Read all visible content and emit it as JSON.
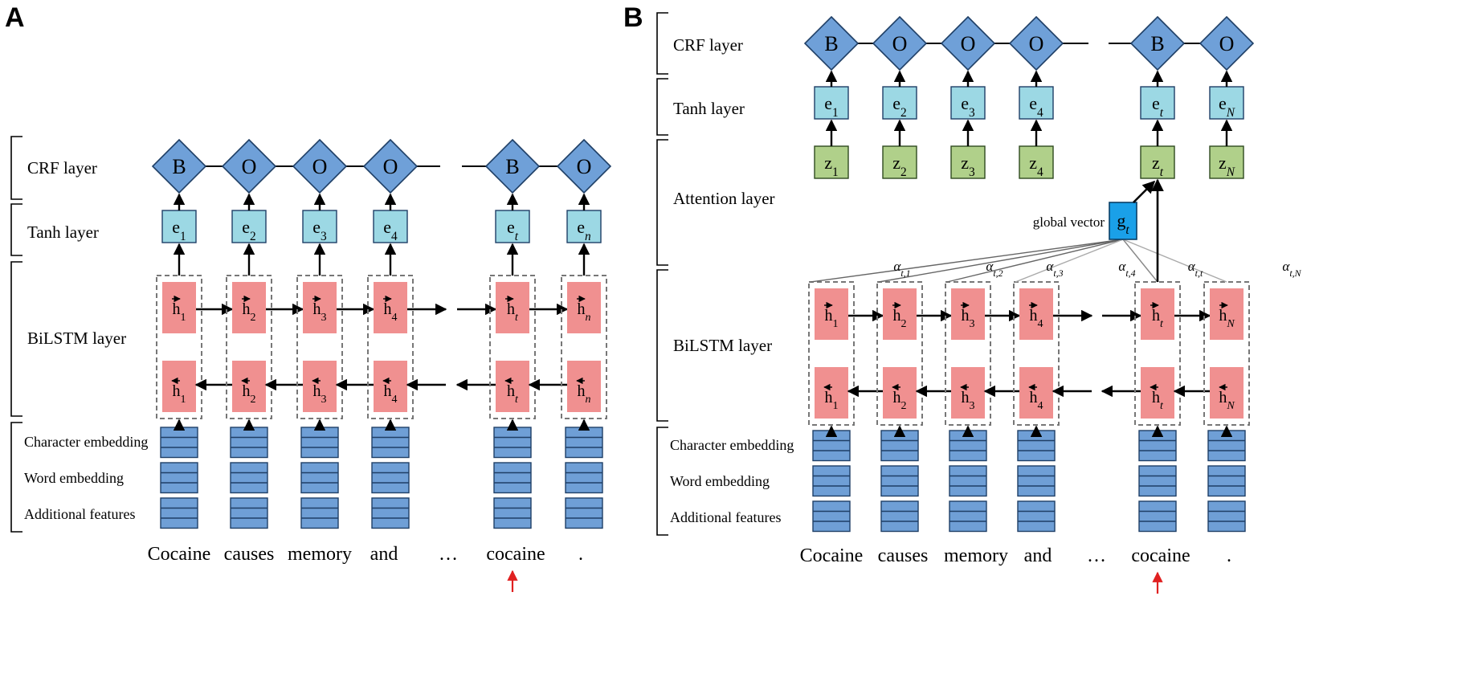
{
  "panels": [
    {
      "letter": "A",
      "layers": {
        "crf": "CRF layer",
        "tanh": "Tanh layer",
        "bilstm": "BiLSTM layer"
      },
      "embeddings": [
        "Character embedding",
        "Word embedding",
        "Additional features"
      ],
      "tags": [
        "B",
        "O",
        "O",
        "O",
        "B",
        "O"
      ],
      "e_subs": [
        "1",
        "2",
        "3",
        "4",
        "t",
        "n"
      ],
      "h_subs": [
        "1",
        "2",
        "3",
        "4",
        "t",
        "n"
      ],
      "words": [
        "Cocaine",
        "causes",
        "memory",
        "and",
        "…",
        "cocaine",
        "."
      ]
    },
    {
      "letter": "B",
      "layers": {
        "crf": "CRF layer",
        "tanh": "Tanh layer",
        "attention": "Attention layer",
        "bilstm": "BiLSTM layer"
      },
      "embeddings": [
        "Character embedding",
        "Word embedding",
        "Additional features"
      ],
      "tags": [
        "B",
        "O",
        "O",
        "O",
        "B",
        "O"
      ],
      "e_subs": [
        "1",
        "2",
        "3",
        "4",
        "t",
        "N"
      ],
      "z_subs": [
        "1",
        "2",
        "3",
        "4",
        "t",
        "N"
      ],
      "h_subs": [
        "1",
        "2",
        "3",
        "4",
        "t",
        "N"
      ],
      "alpha_subs": [
        "t,1",
        "t,2",
        "t,3",
        "t,4",
        "t,t",
        "t,N"
      ],
      "global_label": "global vector",
      "global_sub": "t",
      "words": [
        "Cocaine",
        "causes",
        "memory",
        "and",
        "…",
        "cocaine",
        "."
      ]
    }
  ],
  "colors": {
    "diamond": "#6fa0d8",
    "tanh_box": "#9cd8e4",
    "z_box": "#b0d08a",
    "h_box": "#f09090",
    "embedding": "#6f9fd6",
    "global_box": "#1aa0e8",
    "target_arrow": "#e02020"
  }
}
